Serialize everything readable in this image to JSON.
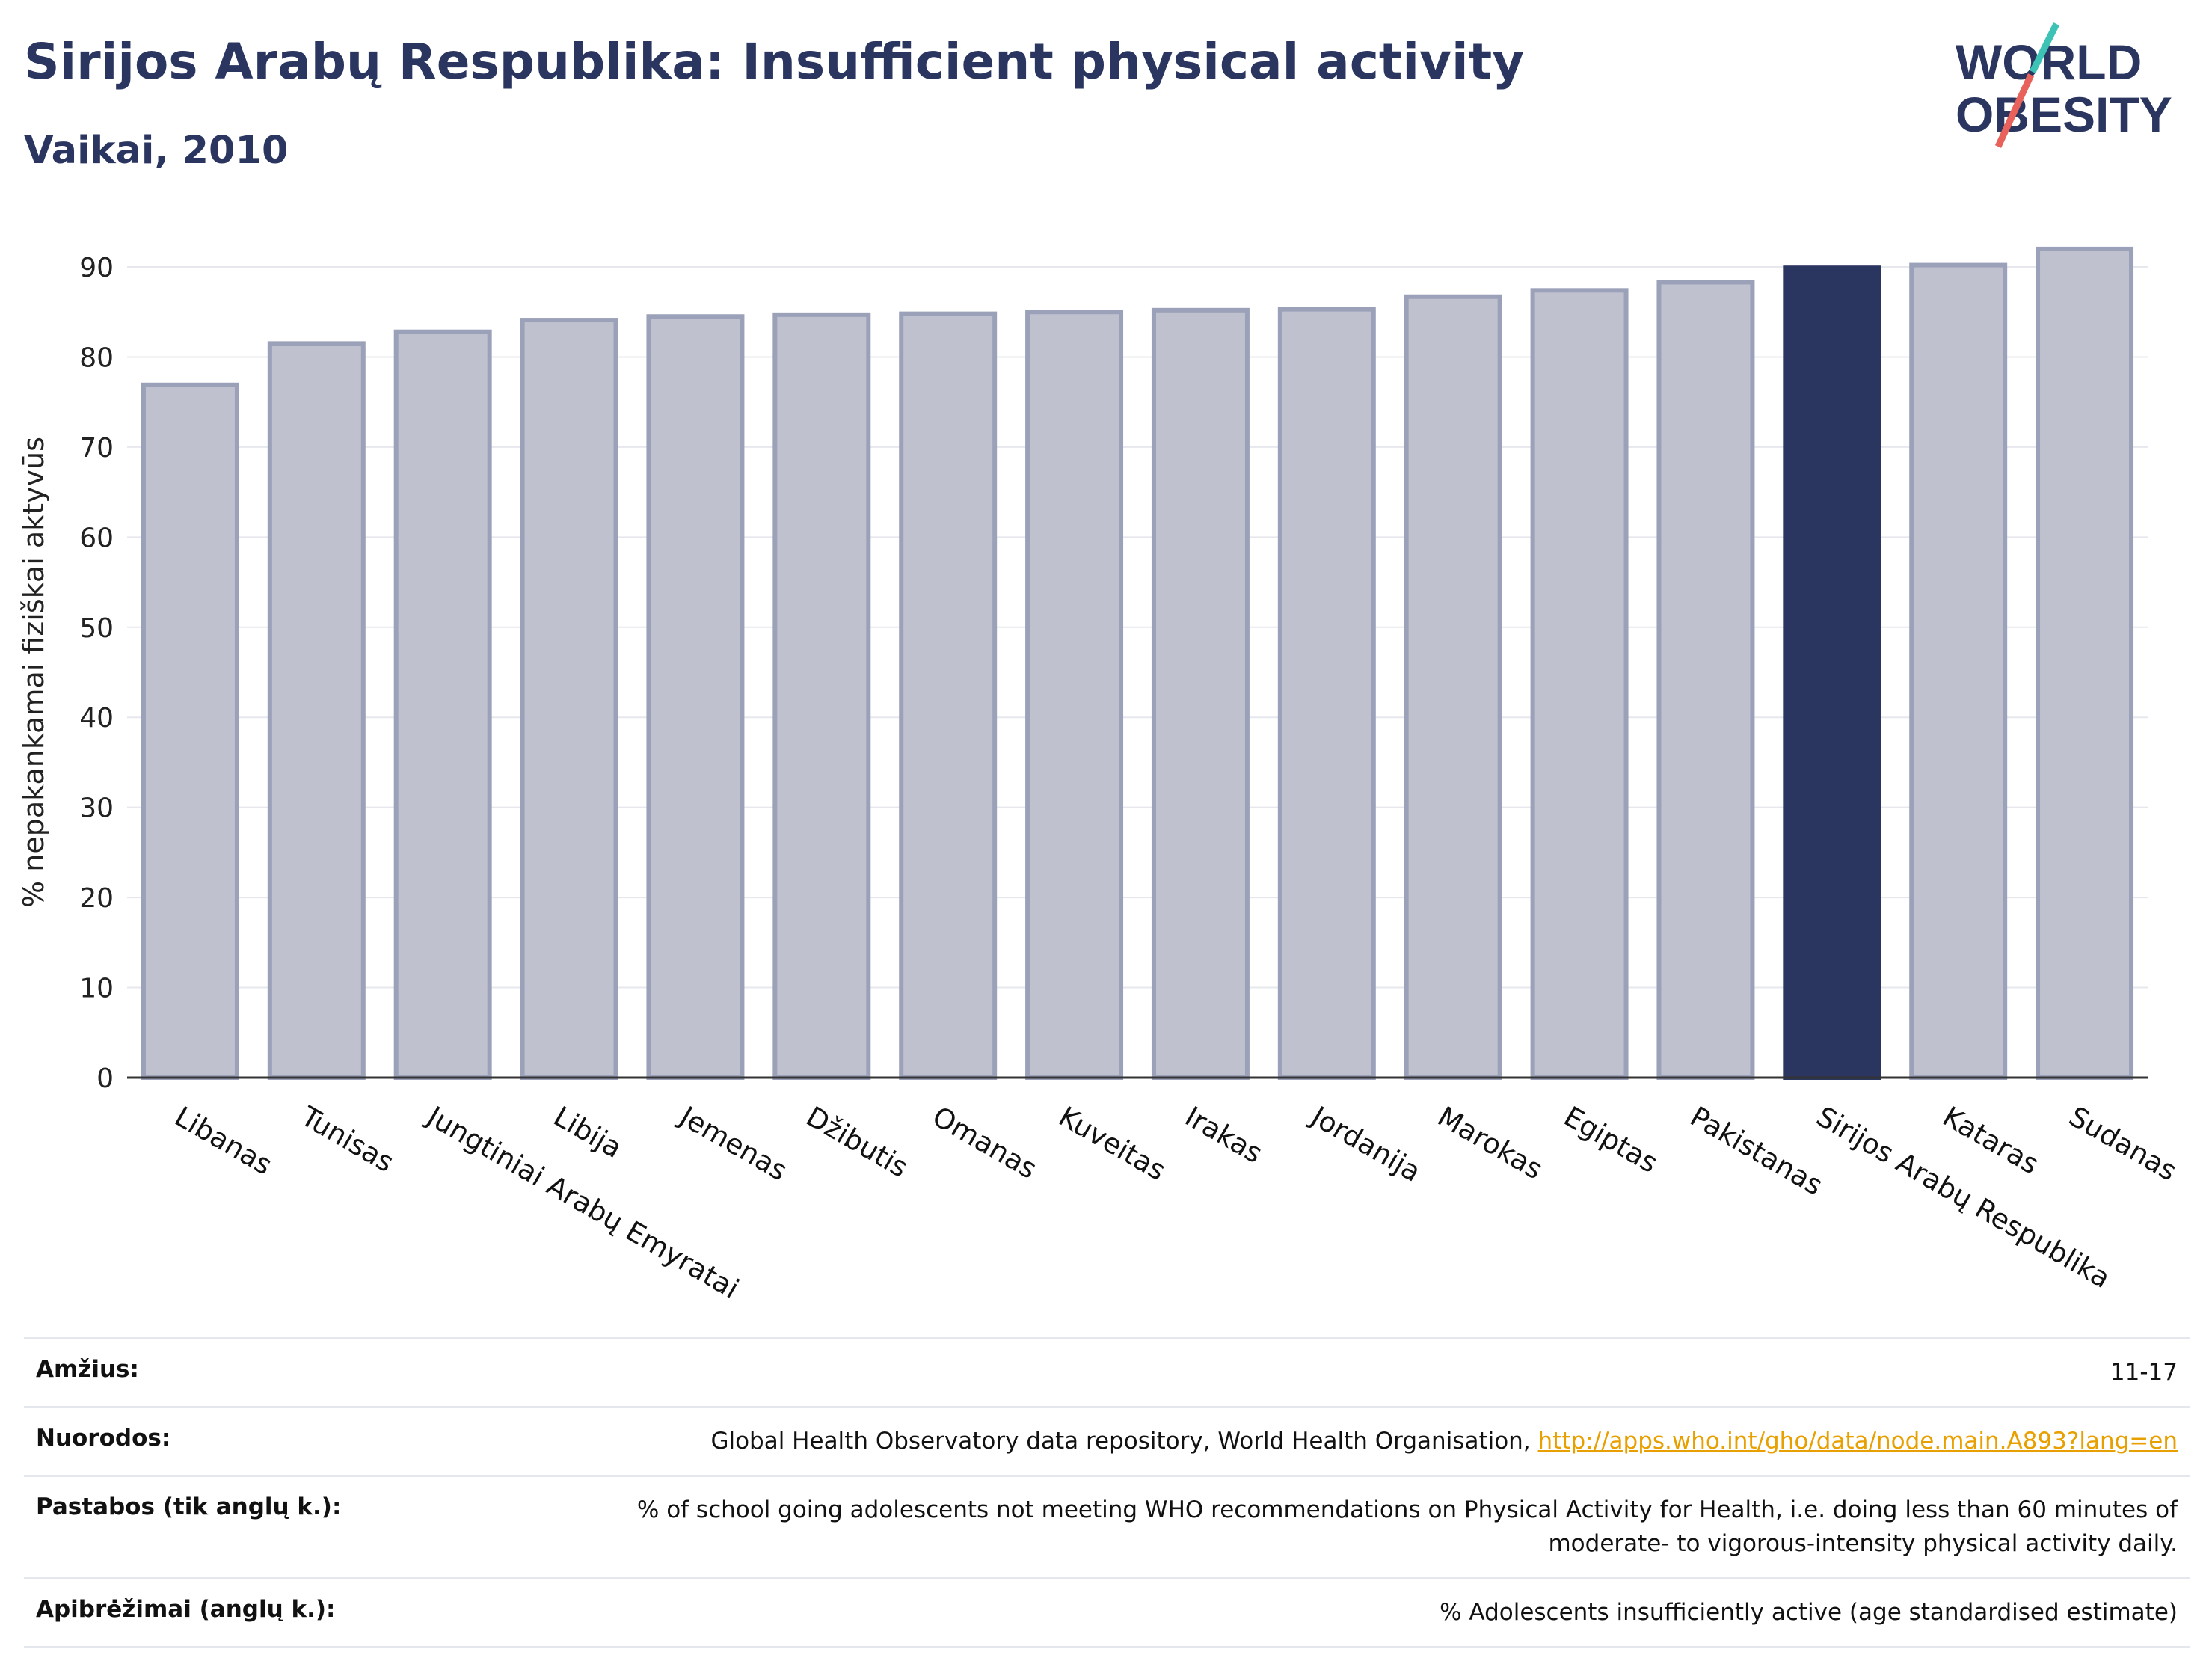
{
  "header": {
    "title": "Sirijos Arabų Respublika: Insufficient physical activity",
    "subtitle": "Vaikai, 2010"
  },
  "logo": {
    "line1": "WORLD",
    "line2": "OBESITY",
    "accent_teal": "#3cc3b5",
    "accent_red": "#e8625b"
  },
  "chart_data": {
    "type": "bar",
    "ylabel": "% nepakankamai fiziškai aktyvūs",
    "ylim": [
      0,
      90
    ],
    "yticks": [
      0,
      10,
      20,
      30,
      40,
      50,
      60,
      70,
      80,
      90
    ],
    "grid": true,
    "categories": [
      "Libanas",
      "Tunisas",
      "Jungtiniai Arabų Emyratai",
      "Libija",
      "Jemenas",
      "Džibutis",
      "Omanas",
      "Kuveitas",
      "Irakas",
      "Jordanija",
      "Marokas",
      "Egiptas",
      "Pakistanas",
      "Sirijos Arabų Respublika",
      "Kataras",
      "Sudanas"
    ],
    "values": [
      76.9,
      81.5,
      82.8,
      84.1,
      84.5,
      84.7,
      84.8,
      85.0,
      85.2,
      85.3,
      86.7,
      87.4,
      88.3,
      89.9,
      90.2,
      92.0
    ],
    "highlight": "Sirijos Arabų Respublika",
    "colors": {
      "bar": "#bfc2ce",
      "bar_border": "#9ba1b8",
      "highlight": "#2a3560"
    }
  },
  "footer": {
    "rows": [
      {
        "label": "Amžius:",
        "value": "11-17"
      },
      {
        "label": "Nuorodos:",
        "value": "Global Health Observatory data repository, World Health Organisation, ",
        "link": "http://apps.who.int/gho/data/node.main.A893?lang=en"
      },
      {
        "label": "Pastabos (tik anglų k.):",
        "value": "% of school going adolescents not meeting WHO recommendations on Physical Activity for Health, i.e. doing less than 60 minutes of moderate- to vigorous-intensity physical activity daily."
      },
      {
        "label": "Apibrėžimai (anglų k.):",
        "value": "% Adolescents insufficiently active (age standardised estimate)"
      }
    ]
  }
}
